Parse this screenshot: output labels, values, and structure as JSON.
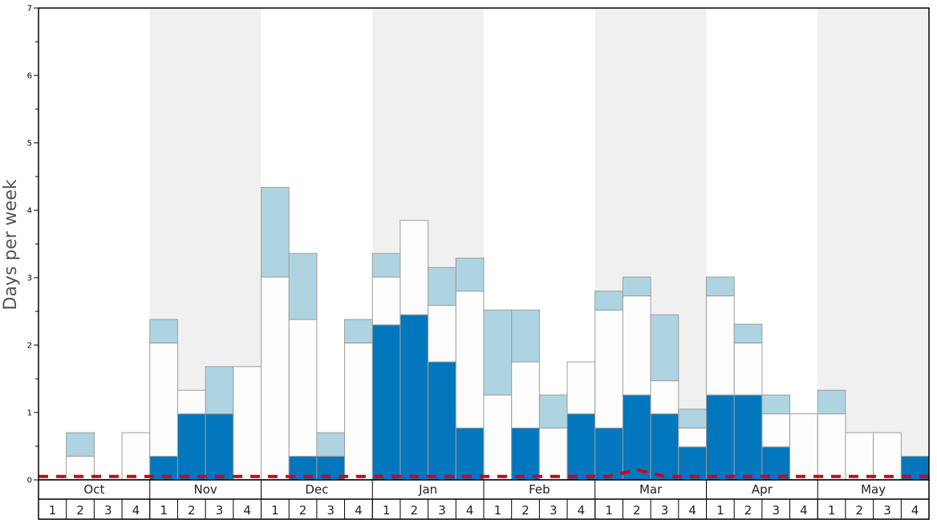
{
  "chart_data": {
    "type": "bar",
    "ylabel": "Days per week",
    "ylim": [
      0,
      7
    ],
    "yticks": [
      "0",
      "1",
      "2",
      "3",
      "4",
      "5",
      "6",
      "7"
    ],
    "months": [
      "Oct",
      "Nov",
      "Dec",
      "Jan",
      "Feb",
      "Mar",
      "Apr",
      "May"
    ],
    "week_labels": [
      "1",
      "2",
      "3",
      "4"
    ],
    "categories": [
      "Oct 1",
      "Oct 2",
      "Oct 3",
      "Oct 4",
      "Nov 1",
      "Nov 2",
      "Nov 3",
      "Nov 4",
      "Dec 1",
      "Dec 2",
      "Dec 3",
      "Dec 4",
      "Jan 1",
      "Jan 2",
      "Jan 3",
      "Jan 4",
      "Feb 1",
      "Feb 2",
      "Feb 3",
      "Feb 4",
      "Mar 1",
      "Mar 2",
      "Mar 3",
      "Mar 4",
      "Apr 1",
      "Apr 2",
      "Apr 3",
      "Apr 4",
      "May 1",
      "May 2",
      "May 3",
      "May 4"
    ],
    "series": [
      {
        "values": [
          0,
          0,
          0,
          0,
          0.35,
          0.98,
          0.98,
          0,
          0,
          0.35,
          0.35,
          0,
          2.3,
          2.45,
          1.75,
          0.77,
          0,
          0.77,
          0,
          0.98,
          0.77,
          1.26,
          0.98,
          0.49,
          1.26,
          1.26,
          0.49,
          0,
          0,
          0,
          0,
          0.35
        ]
      },
      {
        "values": [
          0,
          0.35,
          0,
          0.7,
          1.68,
          0.35,
          0,
          1.68,
          3.01,
          2.03,
          0,
          2.03,
          0.71,
          1.4,
          0.84,
          2.03,
          1.26,
          0.98,
          0.77,
          0.77,
          1.75,
          1.47,
          0.49,
          0.28,
          1.47,
          0.77,
          0.49,
          0.98,
          0.98,
          0.7,
          0.7,
          0
        ]
      },
      {
        "values": [
          0,
          0.35,
          0,
          0,
          0.35,
          0,
          0.7,
          0,
          1.33,
          0.98,
          0.35,
          0.35,
          0.35,
          0,
          0.56,
          0.49,
          1.26,
          0.77,
          0.49,
          0,
          0.28,
          0.28,
          0.98,
          0.28,
          0.28,
          0.28,
          0.28,
          0,
          0.35,
          0,
          0,
          0
        ]
      }
    ],
    "threshold": [
      0.05,
      0.05,
      0.05,
      0.05,
      0.05,
      0.05,
      0.05,
      0.05,
      0.05,
      0.05,
      0.05,
      0.05,
      0.05,
      0.05,
      0.05,
      0.05,
      0.05,
      0.05,
      0.05,
      0.05,
      0.05,
      0.15,
      0.05,
      0.05,
      0.05,
      0.05,
      0.05,
      0.05,
      0.05,
      0.05,
      0.05,
      0.05
    ],
    "colors": {
      "series": [
        "#0277bd",
        "#fdfdfd",
        "#add4e0"
      ],
      "bar_stroke": "#9e9e9e",
      "shade": "#f0f0f0",
      "threshold": "#d0021b"
    },
    "grid": false
  }
}
